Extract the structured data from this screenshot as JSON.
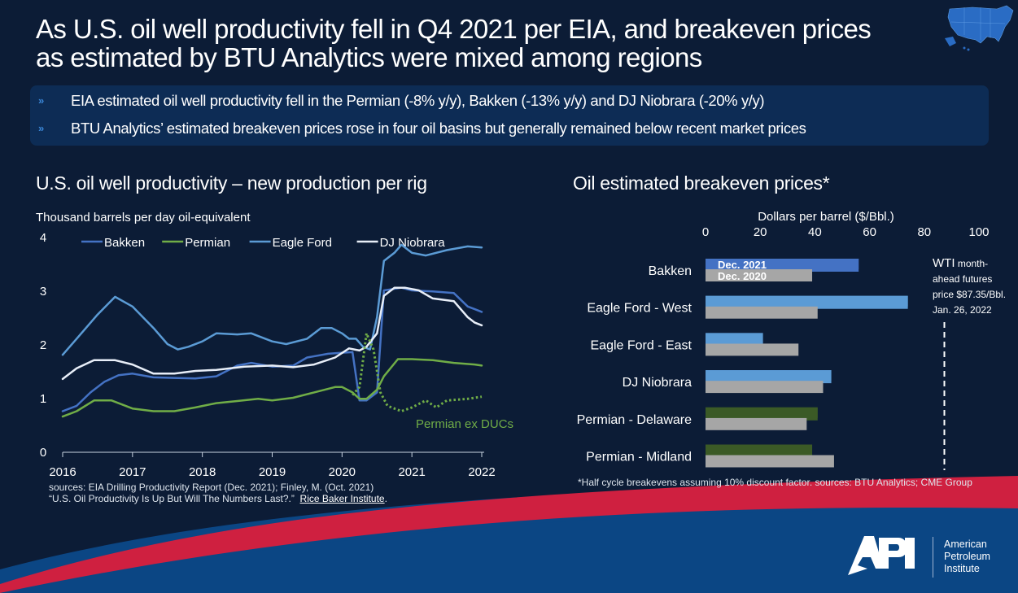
{
  "title": {
    "line1": "As U.S. oil well productivity fell in Q4 2021 per EIA, and breakeven prices",
    "line2": "as estimated by BTU Analytics were mixed among regions"
  },
  "bullets": [
    {
      "icon": "chevron-right-icon",
      "text": "EIA estimated oil well productivity fell in the Permian (-8% y/y), Bakken (-13% y/y) and DJ Niobrara (-20% y/y)"
    },
    {
      "icon": "chevron-right-icon",
      "text": "BTU Analytics’ estimated breakeven prices rose in four oil basins but generally remained below recent market prices"
    }
  ],
  "colors": {
    "background": "#0c1c36",
    "bakken": "#4472c4",
    "permian": "#70ad47",
    "eagle_ford": "#5b9bd5",
    "dj_niobrara": "#e8eef8",
    "dec2020": "#a6a6a6",
    "permian_bar": "#3b5a26",
    "red_swoosh": "#cf2040",
    "blue_swoosh": "#0b4684"
  },
  "chart_data": [
    {
      "type": "line",
      "title": "U.S. oil well productivity – new production per rig",
      "ylabel": "Thousand barrels per day oil-equivalent",
      "xlabel": "",
      "xlim": [
        2016,
        2022
      ],
      "ylim": [
        0,
        4
      ],
      "x_ticks": [
        "2016",
        "2017",
        "2018",
        "2019",
        "2020",
        "2021",
        "2022"
      ],
      "y_ticks": [
        "0",
        "1",
        "2",
        "3",
        "4"
      ],
      "grid": false,
      "legend": "top",
      "annotation": "Permian ex DUCs",
      "series": [
        {
          "name": "Bakken",
          "key": "bakken",
          "style": "solid",
          "x": [
            2016.0,
            2016.2,
            2016.4,
            2016.6,
            2016.8,
            2017.0,
            2017.3,
            2017.6,
            2017.9,
            2018.2,
            2018.5,
            2018.7,
            2019.0,
            2019.3,
            2019.5,
            2019.8,
            2020.0,
            2020.15,
            2020.25,
            2020.35,
            2020.5,
            2020.6,
            2020.7,
            2020.85,
            2021.0,
            2021.3,
            2021.6,
            2021.8,
            2021.9,
            2022.0
          ],
          "y": [
            0.75,
            0.85,
            1.1,
            1.3,
            1.42,
            1.45,
            1.38,
            1.37,
            1.36,
            1.4,
            1.6,
            1.65,
            1.58,
            1.6,
            1.75,
            1.82,
            1.84,
            1.85,
            0.95,
            0.95,
            1.1,
            3.0,
            3.02,
            3.05,
            3.0,
            2.98,
            2.95,
            2.7,
            2.65,
            2.6
          ]
        },
        {
          "name": "Permian",
          "key": "permian",
          "style": "solid",
          "x": [
            2016.0,
            2016.2,
            2016.45,
            2016.7,
            2017.0,
            2017.3,
            2017.6,
            2017.9,
            2018.2,
            2018.5,
            2018.8,
            2019.0,
            2019.3,
            2019.6,
            2019.9,
            2020.0,
            2020.15,
            2020.25,
            2020.35,
            2020.5,
            2020.6,
            2020.8,
            2021.0,
            2021.3,
            2021.6,
            2021.9,
            2022.0
          ],
          "y": [
            0.65,
            0.75,
            0.95,
            0.95,
            0.8,
            0.75,
            0.75,
            0.82,
            0.9,
            0.94,
            0.98,
            0.95,
            1.0,
            1.1,
            1.2,
            1.2,
            1.1,
            0.98,
            0.98,
            1.15,
            1.4,
            1.72,
            1.72,
            1.7,
            1.65,
            1.62,
            1.6
          ]
        },
        {
          "name": "Eagle Ford",
          "key": "eagle_ford",
          "style": "solid",
          "x": [
            2016.0,
            2016.2,
            2016.5,
            2016.75,
            2017.0,
            2017.3,
            2017.5,
            2017.65,
            2017.8,
            2018.0,
            2018.2,
            2018.5,
            2018.7,
            2019.0,
            2019.2,
            2019.5,
            2019.7,
            2019.85,
            2020.0,
            2020.1,
            2020.2,
            2020.3,
            2020.4,
            2020.5,
            2020.6,
            2020.75,
            2020.85,
            2021.0,
            2021.2,
            2021.5,
            2021.8,
            2022.0
          ],
          "y": [
            1.8,
            2.1,
            2.55,
            2.88,
            2.7,
            2.3,
            2.0,
            1.9,
            1.95,
            2.05,
            2.2,
            2.18,
            2.2,
            2.05,
            2.0,
            2.1,
            2.3,
            2.3,
            2.2,
            2.1,
            2.1,
            1.95,
            1.9,
            2.5,
            3.55,
            3.7,
            3.85,
            3.7,
            3.65,
            3.75,
            3.82,
            3.8
          ]
        },
        {
          "name": "DJ Niobrara",
          "key": "dj_niobrara",
          "style": "solid",
          "x": [
            2016.0,
            2016.2,
            2016.45,
            2016.75,
            2017.0,
            2017.3,
            2017.6,
            2017.9,
            2018.2,
            2018.6,
            2019.0,
            2019.3,
            2019.6,
            2019.9,
            2020.1,
            2020.25,
            2020.35,
            2020.5,
            2020.6,
            2020.75,
            2020.9,
            2021.1,
            2021.3,
            2021.6,
            2021.8,
            2021.9,
            2022.0
          ],
          "y": [
            1.35,
            1.55,
            1.7,
            1.7,
            1.62,
            1.45,
            1.45,
            1.5,
            1.52,
            1.58,
            1.6,
            1.57,
            1.62,
            1.75,
            1.92,
            1.88,
            1.95,
            2.2,
            2.9,
            3.05,
            3.05,
            3.0,
            2.85,
            2.8,
            2.5,
            2.4,
            2.35
          ]
        },
        {
          "name": "Permian ex DUCs",
          "key": "permian",
          "style": "dotted",
          "x": [
            2020.15,
            2020.25,
            2020.35,
            2020.45,
            2020.55,
            2020.65,
            2020.85,
            2021.0,
            2021.2,
            2021.35,
            2021.5,
            2021.8,
            2022.0
          ],
          "y": [
            1.05,
            1.2,
            2.2,
            1.9,
            1.1,
            0.85,
            0.75,
            0.82,
            0.95,
            0.82,
            0.95,
            0.98,
            1.02
          ]
        }
      ],
      "sources_line1": "sources:  EIA Drilling Productivity Report (Dec. 2021); Finley, M. (Oct. 2021)",
      "sources_line2": "“U.S. Oil Productivity Is Up But Will The Numbers Last?.”",
      "sources_link": "Rice Baker Institute",
      "sources_end": "."
    },
    {
      "type": "bar",
      "orientation": "horizontal",
      "title": "Oil estimated breakeven prices*",
      "xlabel": "Dollars per barrel ($/Bbl.)",
      "xlim": [
        0,
        100
      ],
      "x_ticks": [
        "0",
        "20",
        "40",
        "60",
        "80",
        "100"
      ],
      "categories": [
        "Bakken",
        "Eagle Ford - West",
        "Eagle Ford - East",
        "DJ Niobrara",
        "Permian - Delaware",
        "Permian - Midland"
      ],
      "series": [
        {
          "name": "Dec. 2021",
          "values": [
            56,
            74,
            21,
            46,
            41,
            39
          ],
          "colors": [
            "#4472c4",
            "#5b9bd5",
            "#5b9bd5",
            "#5b9bd5",
            "#3b5a26",
            "#3b5a26"
          ]
        },
        {
          "name": "Dec. 2020",
          "values": [
            39,
            41,
            34,
            43,
            37,
            47
          ],
          "color": "#a6a6a6"
        }
      ],
      "reference_line": {
        "value": 87.35,
        "label_big": "WTI",
        "label_rest": " month-",
        "label_line2": "ahead futures",
        "label_line3": "price $87.35/Bbl.",
        "label_line4": "Jan. 26, 2022"
      },
      "footnote": "*Half cycle breakevens assuming 10% discount factor.   sources:  BTU Analytics; CME Group"
    }
  ],
  "logo": {
    "text": "API",
    "name_line1": "American",
    "name_line2": "Petroleum",
    "name_line3": "Institute"
  }
}
